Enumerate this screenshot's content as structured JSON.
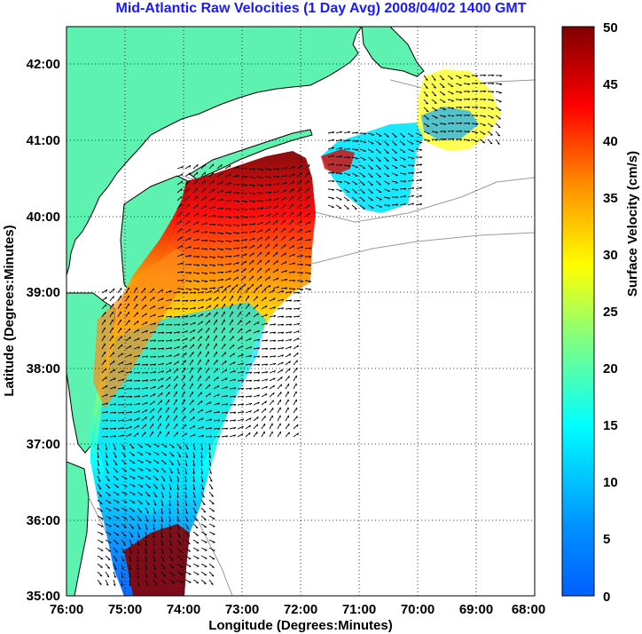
{
  "title": "Mid-Atlantic Raw Velocities (1 Day Avg) 2008/04/02 1400 GMT",
  "map": {
    "xlabel": "Longitude (Degrees:Minutes)",
    "ylabel": "Latitude (Degrees:Minutes)",
    "x_ticks": [
      "76:00",
      "75:00",
      "74:00",
      "73:00",
      "72:00",
      "71:00",
      "70:00",
      "69:00",
      "68:00"
    ],
    "y_ticks": [
      "42:00",
      "41:00",
      "40:00",
      "39:00",
      "38:00",
      "37:00",
      "36:00",
      "35:00"
    ],
    "lon_range": [
      -76,
      -68
    ],
    "lat_range": [
      35,
      42.5
    ],
    "land_color": "#5ef2b0",
    "coast_color": "#000000",
    "bathy_color": "#9a9a9a",
    "grid": true
  },
  "colorbar": {
    "label": "Surface Velocity (cm/s)",
    "ticks": [
      "50",
      "45",
      "40",
      "35",
      "30",
      "25",
      "20",
      "15",
      "10",
      "5",
      "0"
    ],
    "range": [
      0,
      50
    ],
    "colors": [
      "#800000",
      "#ff0000",
      "#ff8000",
      "#ffff00",
      "#80ff80",
      "#00ffff",
      "#0080ff",
      "#0000ff"
    ]
  }
}
